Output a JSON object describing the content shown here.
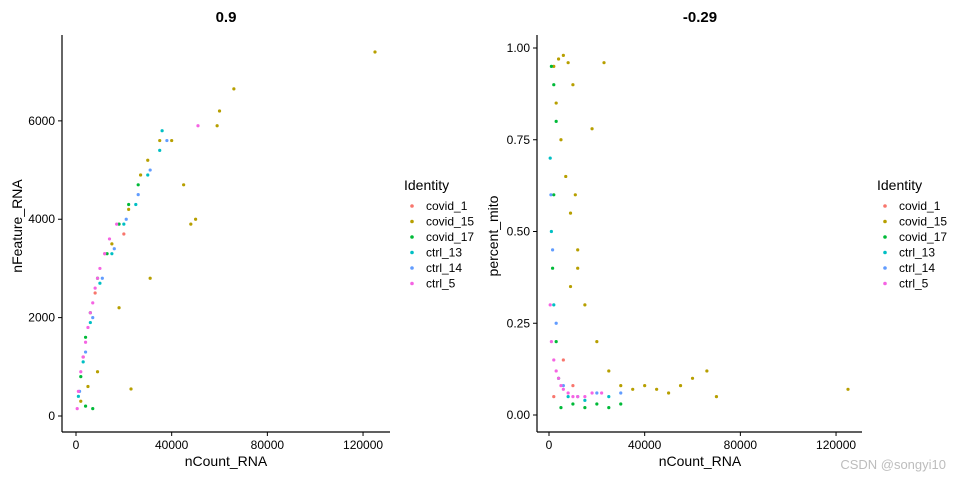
{
  "watermark": "CSDN @songyi10",
  "legend": {
    "title": "Identity",
    "items": [
      {
        "label": "covid_1",
        "color": "#F8766D"
      },
      {
        "label": "covid_15",
        "color": "#B79F00"
      },
      {
        "label": "covid_17",
        "color": "#00BA38"
      },
      {
        "label": "ctrl_13",
        "color": "#00BFC4"
      },
      {
        "label": "ctrl_14",
        "color": "#619CFF"
      },
      {
        "label": "ctrl_5",
        "color": "#F564E3"
      }
    ]
  },
  "chart_data": [
    {
      "type": "scatter",
      "title": "0.9",
      "xlabel": "nCount_RNA",
      "ylabel": "nFeature_RNA",
      "xlim": [
        0,
        125000
      ],
      "ylim": [
        0,
        7400
      ],
      "xticks": [
        0,
        40000,
        80000,
        120000
      ],
      "yticks": [
        0,
        2000,
        4000,
        6000
      ],
      "series": [
        {
          "name": "covid_1",
          "points": [
            [
              3000,
              1200
            ],
            [
              8000,
              2500
            ],
            [
              12000,
              3300
            ],
            [
              20000,
              3700
            ]
          ]
        },
        {
          "name": "covid_15",
          "points": [
            [
              2000,
              300
            ],
            [
              5000,
              600
            ],
            [
              9000,
              900
            ],
            [
              15000,
              3500
            ],
            [
              22000,
              4200
            ],
            [
              27000,
              4900
            ],
            [
              30000,
              5200
            ],
            [
              35000,
              5600
            ],
            [
              40000,
              5600
            ],
            [
              45000,
              4700
            ],
            [
              50000,
              4000
            ],
            [
              23000,
              550
            ],
            [
              18000,
              2200
            ],
            [
              31000,
              2800
            ],
            [
              48000,
              3900
            ],
            [
              59000,
              5900
            ],
            [
              60000,
              6200
            ],
            [
              66000,
              6650
            ],
            [
              125000,
              7400
            ]
          ]
        },
        {
          "name": "covid_17",
          "points": [
            [
              2000,
              800
            ],
            [
              4000,
              1600
            ],
            [
              6000,
              2100
            ],
            [
              9000,
              2800
            ],
            [
              13000,
              3300
            ],
            [
              18000,
              3900
            ],
            [
              22000,
              4300
            ],
            [
              26000,
              4700
            ],
            [
              4000,
              200
            ],
            [
              7000,
              150
            ]
          ]
        },
        {
          "name": "ctrl_13",
          "points": [
            [
              1000,
              400
            ],
            [
              3000,
              1100
            ],
            [
              6000,
              1900
            ],
            [
              10000,
              2700
            ],
            [
              15000,
              3300
            ],
            [
              20000,
              3900
            ],
            [
              25000,
              4300
            ],
            [
              30000,
              4900
            ],
            [
              35000,
              5400
            ],
            [
              36000,
              5800
            ]
          ]
        },
        {
          "name": "ctrl_14",
          "points": [
            [
              1500,
              500
            ],
            [
              4000,
              1300
            ],
            [
              7000,
              2000
            ],
            [
              11000,
              2800
            ],
            [
              16000,
              3400
            ],
            [
              21000,
              4000
            ],
            [
              26000,
              4500
            ],
            [
              31000,
              5000
            ],
            [
              38000,
              5600
            ]
          ]
        },
        {
          "name": "ctrl_5",
          "points": [
            [
              500,
              150
            ],
            [
              1000,
              500
            ],
            [
              2000,
              900
            ],
            [
              3000,
              1200
            ],
            [
              4000,
              1500
            ],
            [
              5000,
              1800
            ],
            [
              6000,
              2100
            ],
            [
              7000,
              2300
            ],
            [
              8000,
              2600
            ],
            [
              9000,
              2800
            ],
            [
              10000,
              3000
            ],
            [
              12000,
              3300
            ],
            [
              14000,
              3600
            ],
            [
              17000,
              3900
            ],
            [
              51000,
              5900
            ]
          ]
        }
      ]
    },
    {
      "type": "scatter",
      "title": "-0.29",
      "xlabel": "nCount_RNA",
      "ylabel": "percent_mito",
      "xlim": [
        0,
        125000
      ],
      "ylim": [
        0,
        1
      ],
      "xticks": [
        0,
        40000,
        80000,
        120000
      ],
      "yticks": [
        0.0,
        0.25,
        0.5,
        0.75,
        1.0
      ],
      "series": [
        {
          "name": "covid_1",
          "points": [
            [
              2000,
              0.05
            ],
            [
              4000,
              0.1
            ],
            [
              6000,
              0.15
            ],
            [
              10000,
              0.08
            ]
          ]
        },
        {
          "name": "covid_15",
          "points": [
            [
              2000,
              0.95
            ],
            [
              4000,
              0.97
            ],
            [
              6000,
              0.98
            ],
            [
              8000,
              0.96
            ],
            [
              10000,
              0.9
            ],
            [
              3000,
              0.85
            ],
            [
              5000,
              0.75
            ],
            [
              7000,
              0.65
            ],
            [
              9000,
              0.55
            ],
            [
              12000,
              0.45
            ],
            [
              15000,
              0.3
            ],
            [
              20000,
              0.2
            ],
            [
              25000,
              0.12
            ],
            [
              30000,
              0.08
            ],
            [
              35000,
              0.07
            ],
            [
              40000,
              0.08
            ],
            [
              45000,
              0.07
            ],
            [
              50000,
              0.06
            ],
            [
              55000,
              0.08
            ],
            [
              60000,
              0.1
            ],
            [
              66000,
              0.12
            ],
            [
              70000,
              0.05
            ],
            [
              125000,
              0.07
            ],
            [
              23000,
              0.96
            ],
            [
              11000,
              0.6
            ],
            [
              18000,
              0.78
            ],
            [
              12000,
              0.4
            ],
            [
              9000,
              0.35
            ]
          ]
        },
        {
          "name": "covid_17",
          "points": [
            [
              1000,
              0.95
            ],
            [
              2000,
              0.9
            ],
            [
              3000,
              0.8
            ],
            [
              2000,
              0.6
            ],
            [
              1500,
              0.4
            ],
            [
              3000,
              0.2
            ],
            [
              5000,
              0.02
            ],
            [
              10000,
              0.03
            ],
            [
              15000,
              0.02
            ],
            [
              20000,
              0.03
            ],
            [
              25000,
              0.02
            ],
            [
              30000,
              0.03
            ]
          ]
        },
        {
          "name": "ctrl_13",
          "points": [
            [
              500,
              0.7
            ],
            [
              1000,
              0.5
            ],
            [
              2000,
              0.3
            ],
            [
              4000,
              0.1
            ],
            [
              8000,
              0.05
            ],
            [
              15000,
              0.04
            ],
            [
              25000,
              0.05
            ]
          ]
        },
        {
          "name": "ctrl_14",
          "points": [
            [
              800,
              0.6
            ],
            [
              1500,
              0.45
            ],
            [
              3000,
              0.25
            ],
            [
              6000,
              0.08
            ],
            [
              12000,
              0.05
            ],
            [
              20000,
              0.06
            ],
            [
              30000,
              0.06
            ]
          ]
        },
        {
          "name": "ctrl_5",
          "points": [
            [
              500,
              0.3
            ],
            [
              1000,
              0.2
            ],
            [
              2000,
              0.15
            ],
            [
              3000,
              0.12
            ],
            [
              4000,
              0.1
            ],
            [
              5000,
              0.08
            ],
            [
              6000,
              0.07
            ],
            [
              8000,
              0.06
            ],
            [
              10000,
              0.05
            ],
            [
              12000,
              0.05
            ],
            [
              15000,
              0.05
            ],
            [
              18000,
              0.06
            ],
            [
              22000,
              0.06
            ]
          ]
        }
      ]
    }
  ]
}
